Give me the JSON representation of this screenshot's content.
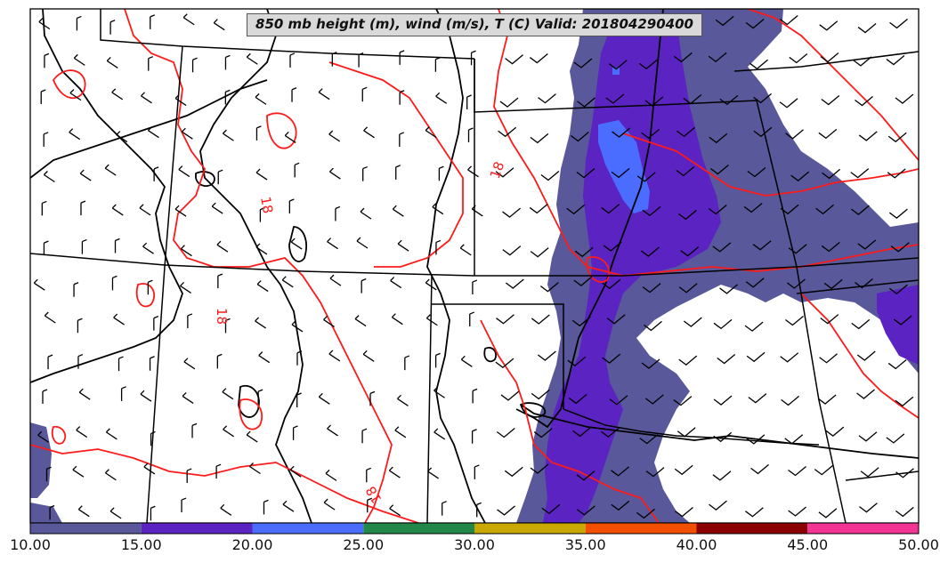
{
  "title": "850 mb height (m), wind (m/s), T (C) Valid: 201804290400",
  "colorbar": {
    "ticks": [
      "10.00",
      "15.00",
      "20.00",
      "25.00",
      "30.00",
      "35.00",
      "40.00",
      "45.00",
      "50.00"
    ],
    "colors": [
      "#58589a",
      "#5b23c2",
      "#4a6cff",
      "#22884a",
      "#c9a800",
      "#f25000",
      "#8b0000",
      "#f23595"
    ]
  },
  "contour_labels": [
    "18",
    "18",
    "18",
    "18",
    "18"
  ],
  "colors": {
    "temperature_contour": "#ff1a1a",
    "height_contour": "#000000",
    "border": "#000000"
  }
}
